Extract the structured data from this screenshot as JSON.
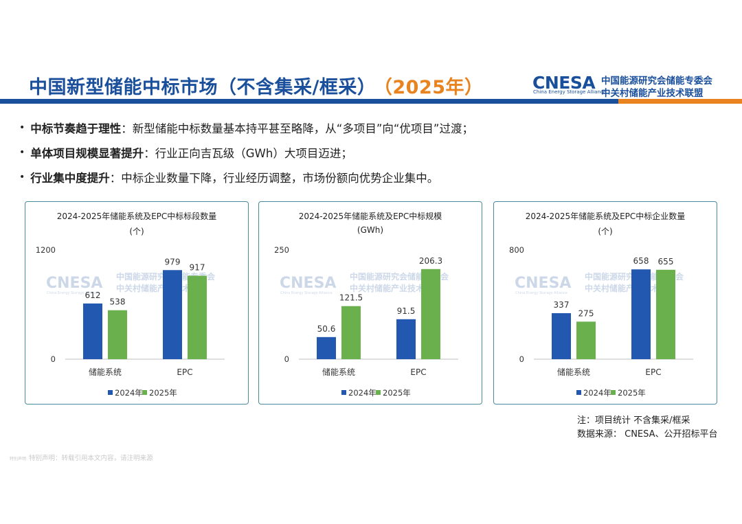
{
  "header": {
    "title": "中国新型储能中标市场（不含集采/框采）",
    "year": "（2025年）"
  },
  "logo": {
    "mark": "CNESA",
    "mark_sub": "China Energy Storage Alliance",
    "org_line1": "中国能源研究会储能专委会",
    "org_line2": "中关村储能产业技术联盟"
  },
  "bullets": [
    {
      "head": "中标节奏趋于理性",
      "text": "：新型储能中标数量基本持平甚至略降，从“多项目”向“优项目”过渡；"
    },
    {
      "head": "单体项目规模显著提升",
      "text": "：行业正向吉瓦级（GWh）大项目迈进；"
    },
    {
      "head": "行业集中度提升",
      "text": "：中标企业数量下降，行业经历调整，市场份额向优势企业集中。"
    }
  ],
  "watermark": {
    "mark": "CNESA",
    "mark_sub": "China Energy Storage Alliance",
    "line1": "中国能源研究会储能专委会",
    "line2": "中关村储能产业技术联盟"
  },
  "colors": {
    "series_2024": "#2358b0",
    "series_2025": "#6ab04c",
    "brand": "#1a4f9c",
    "accent": "#e8831f"
  },
  "chart_data": [
    {
      "type": "bar",
      "title": "2024-2025年储能系统及EPC中标标段数量",
      "unit": "(个)",
      "categories": [
        "储能系统",
        "EPC"
      ],
      "series": [
        {
          "name": "2024年",
          "values": [
            612,
            979
          ]
        },
        {
          "name": "2025年",
          "values": [
            538,
            917
          ]
        }
      ],
      "ylim": [
        0,
        1200
      ],
      "y_ticks": [
        0,
        1200
      ],
      "legend": "bottom"
    },
    {
      "type": "bar",
      "title": "2024-2025年储能系统及EPC中标规模",
      "unit": "(GWh)",
      "categories": [
        "储能系统",
        "EPC"
      ],
      "series": [
        {
          "name": "2024年",
          "values": [
            50.6,
            91.5
          ]
        },
        {
          "name": "2025年",
          "values": [
            121.5,
            206.3
          ]
        }
      ],
      "ylim": [
        0,
        250
      ],
      "y_ticks": [
        0,
        250
      ],
      "legend": "bottom"
    },
    {
      "type": "bar",
      "title": "2024-2025年储能系统及EPC中标企业数量",
      "unit": "(个)",
      "categories": [
        "储能系统",
        "EPC"
      ],
      "series": [
        {
          "name": "2024年",
          "values": [
            337,
            658
          ]
        },
        {
          "name": "2025年",
          "values": [
            275,
            655
          ]
        }
      ],
      "ylim": [
        0,
        800
      ],
      "y_ticks": [
        0,
        800
      ],
      "legend": "bottom"
    }
  ],
  "footer": {
    "note_line1": "注：项目统计 不含集采/框采",
    "note_line2": "数据来源： CNESA、公开招标平台",
    "disclaimer_prefix": "特别声明",
    "disclaimer": "特别声明：转载引用本文内容，请注明来源"
  }
}
